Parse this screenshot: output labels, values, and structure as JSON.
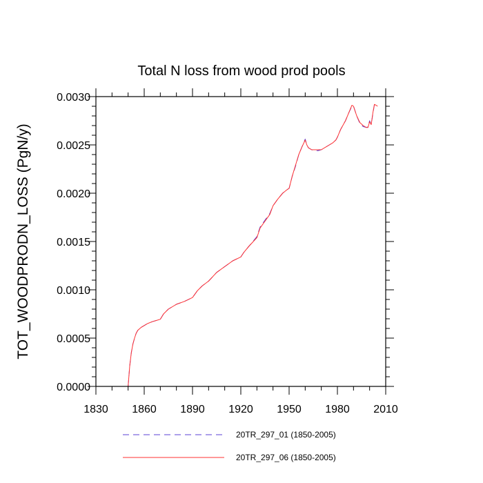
{
  "chart_data": {
    "type": "line",
    "title": "Total N loss from wood prod pools",
    "xlabel": "",
    "ylabel": "TOT_WOODPRODN_LOSS  (PgN/y)",
    "xlim": [
      1830,
      2010
    ],
    "ylim": [
      0.0,
      0.003
    ],
    "x_ticks": [
      1830,
      1860,
      1890,
      1920,
      1950,
      1980,
      2010
    ],
    "x_tick_labels": [
      "1830",
      "1860",
      "1890",
      "1920",
      "1950",
      "1980",
      "2010"
    ],
    "y_ticks": [
      0.0,
      0.0005,
      0.001,
      0.0015,
      0.002,
      0.0025,
      0.003
    ],
    "y_tick_labels": [
      "0.0000",
      "0.0005",
      "0.0010",
      "0.0015",
      "0.0020",
      "0.0025",
      "0.0030"
    ],
    "grid": false,
    "legend_position": "bottom",
    "series": [
      {
        "name": "20TR_297_01 (1850-2005)",
        "color": "#5a3fd6",
        "style": "dashed",
        "x": [
          1850,
          1851,
          1852,
          1853,
          1854,
          1855,
          1856,
          1858,
          1860,
          1862,
          1865,
          1868,
          1870,
          1872,
          1875,
          1880,
          1885,
          1890,
          1893,
          1896,
          1900,
          1905,
          1910,
          1915,
          1920,
          1922,
          1925,
          1930,
          1932,
          1935,
          1938,
          1940,
          1943,
          1946,
          1949,
          1950,
          1952,
          1954,
          1956,
          1958,
          1960,
          1961,
          1962,
          1964,
          1966,
          1968,
          1970,
          1972,
          1975,
          1977,
          1979,
          1980,
          1982,
          1985,
          1987,
          1989,
          1990,
          1992,
          1994,
          1996,
          1998,
          1999,
          2000,
          2001,
          2002,
          2003,
          2004,
          2005
        ],
        "y": [
          0.0,
          0.00021,
          0.00035,
          0.00044,
          0.0005,
          0.00055,
          0.00058,
          0.00061,
          0.00063,
          0.00065,
          0.00067,
          0.000685,
          0.000695,
          0.00075,
          0.0008,
          0.00085,
          0.00088,
          0.00092,
          0.00099,
          0.00104,
          0.00109,
          0.00118,
          0.00124,
          0.0013,
          0.00134,
          0.00139,
          0.00145,
          0.00155,
          0.00165,
          0.00172,
          0.00179,
          0.00187,
          0.00194,
          0.002,
          0.00204,
          0.00205,
          0.00218,
          0.00228,
          0.0024,
          0.00248,
          0.00256,
          0.0025,
          0.00247,
          0.00245,
          0.00244,
          0.00244,
          0.00245,
          0.00247,
          0.0025,
          0.00252,
          0.00255,
          0.00258,
          0.00266,
          0.00275,
          0.00283,
          0.0029,
          0.0029,
          0.0028,
          0.00272,
          0.00269,
          0.00268,
          0.00269,
          0.00275,
          0.00271,
          0.00282,
          0.00292,
          0.00291,
          0.00291
        ]
      },
      {
        "name": "20TR_297_06 (1850-2005)",
        "color": "#ff3030",
        "style": "solid",
        "x": [
          1850,
          1851,
          1852,
          1853,
          1854,
          1855,
          1856,
          1858,
          1860,
          1862,
          1865,
          1868,
          1870,
          1872,
          1875,
          1880,
          1885,
          1890,
          1893,
          1896,
          1900,
          1905,
          1910,
          1915,
          1920,
          1922,
          1925,
          1930,
          1932,
          1935,
          1938,
          1940,
          1943,
          1946,
          1949,
          1950,
          1952,
          1954,
          1956,
          1958,
          1960,
          1961,
          1962,
          1964,
          1966,
          1968,
          1970,
          1972,
          1975,
          1977,
          1979,
          1980,
          1982,
          1985,
          1987,
          1989,
          1990,
          1992,
          1994,
          1996,
          1998,
          1999,
          2000,
          2001,
          2002,
          2003,
          2004,
          2005
        ],
        "y": [
          0.0,
          0.00021,
          0.00035,
          0.00044,
          0.0005,
          0.00055,
          0.00058,
          0.00061,
          0.00063,
          0.00065,
          0.00067,
          0.000685,
          0.000695,
          0.00075,
          0.0008,
          0.00085,
          0.00088,
          0.00092,
          0.00099,
          0.00104,
          0.00109,
          0.00118,
          0.00124,
          0.0013,
          0.00134,
          0.00139,
          0.00145,
          0.00154,
          0.00164,
          0.00171,
          0.00178,
          0.00187,
          0.00194,
          0.002,
          0.00204,
          0.00205,
          0.00218,
          0.00229,
          0.0024,
          0.00248,
          0.00255,
          0.0025,
          0.00247,
          0.00245,
          0.00245,
          0.00245,
          0.00245,
          0.00247,
          0.0025,
          0.00252,
          0.00255,
          0.00258,
          0.00266,
          0.00275,
          0.00283,
          0.00291,
          0.0029,
          0.0028,
          0.00273,
          0.0027,
          0.00268,
          0.00268,
          0.00274,
          0.00271,
          0.00283,
          0.00292,
          0.00291,
          0.0029
        ]
      }
    ]
  }
}
